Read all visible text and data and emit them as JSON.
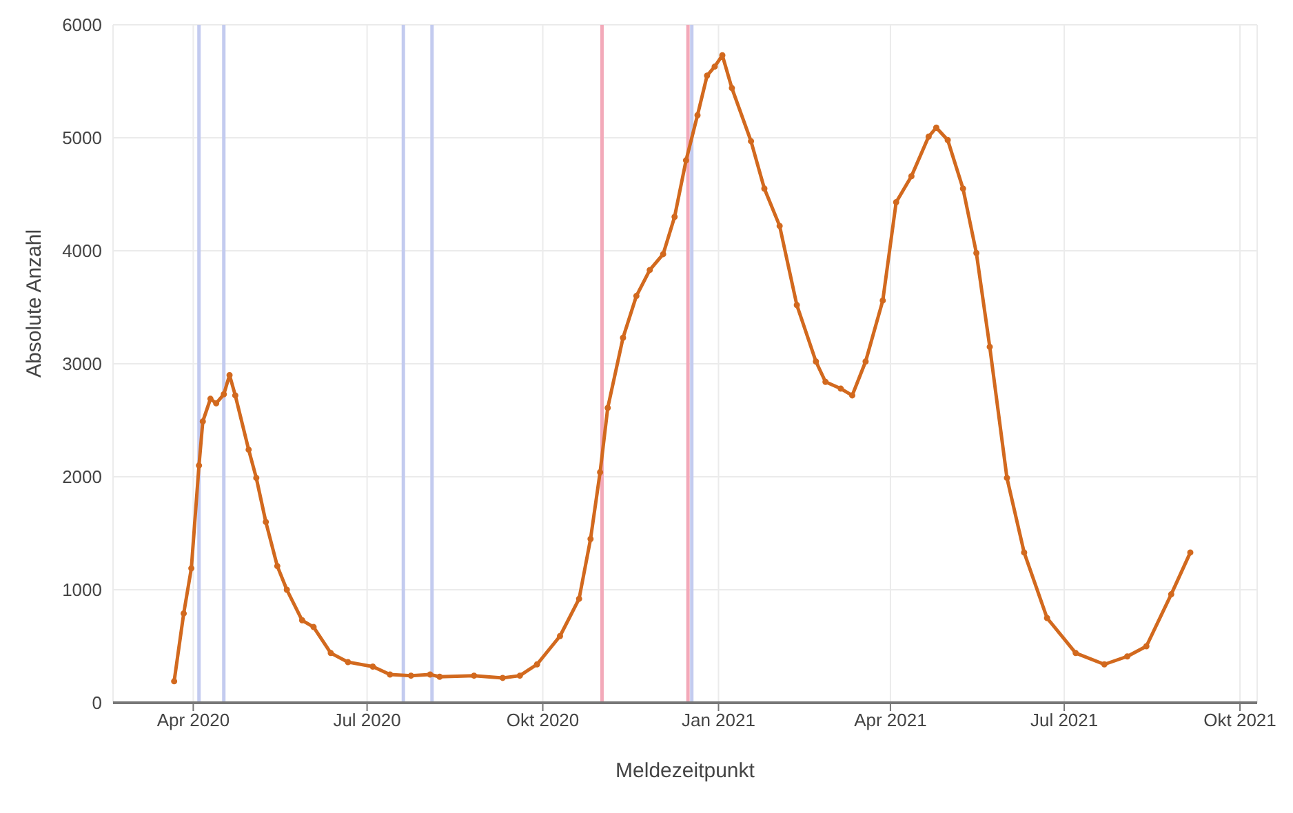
{
  "chart_data": {
    "type": "line",
    "xlabel": "Meldezeitpunkt",
    "ylabel": "Absolute Anzahl",
    "x": [
      "2020-03-22",
      "2020-03-27",
      "2020-03-31",
      "2020-04-04",
      "2020-04-06",
      "2020-04-10",
      "2020-04-13",
      "2020-04-17",
      "2020-04-20",
      "2020-04-23",
      "2020-04-30",
      "2020-05-04",
      "2020-05-09",
      "2020-05-15",
      "2020-05-20",
      "2020-05-28",
      "2020-06-03",
      "2020-06-12",
      "2020-06-21",
      "2020-07-04",
      "2020-07-13",
      "2020-07-24",
      "2020-08-03",
      "2020-08-08",
      "2020-08-26",
      "2020-09-10",
      "2020-09-19",
      "2020-09-28",
      "2020-10-10",
      "2020-10-20",
      "2020-10-26",
      "2020-10-31",
      "2020-11-04",
      "2020-11-12",
      "2020-11-19",
      "2020-11-26",
      "2020-12-03",
      "2020-12-09",
      "2020-12-15",
      "2020-12-21",
      "2020-12-26",
      "2020-12-30",
      "2021-01-03",
      "2021-01-08",
      "2021-01-18",
      "2021-01-25",
      "2021-02-02",
      "2021-02-11",
      "2021-02-21",
      "2021-02-26",
      "2021-03-06",
      "2021-03-12",
      "2021-03-19",
      "2021-03-28",
      "2021-04-04",
      "2021-04-12",
      "2021-04-21",
      "2021-04-25",
      "2021-05-01",
      "2021-05-09",
      "2021-05-16",
      "2021-05-23",
      "2021-06-01",
      "2021-06-10",
      "2021-06-22",
      "2021-07-07",
      "2021-07-22",
      "2021-08-03",
      "2021-08-13",
      "2021-08-26",
      "2021-09-05"
    ],
    "series": [
      {
        "color": "#d2691e",
        "values": [
          190,
          790,
          1190,
          2100,
          2490,
          2690,
          2650,
          2730,
          2900,
          2720,
          2240,
          1990,
          1600,
          1210,
          1000,
          730,
          670,
          440,
          360,
          320,
          250,
          240,
          250,
          230,
          240,
          220,
          240,
          340,
          590,
          920,
          1450,
          2040,
          2610,
          3230,
          3600,
          3830,
          3970,
          4300,
          4800,
          5200,
          5550,
          5630,
          5730,
          5440,
          4970,
          4550,
          4220,
          3520,
          3020,
          2840,
          2780,
          2720,
          3020,
          3560,
          4430,
          4660,
          5010,
          5090,
          4980,
          4550,
          3980,
          3150,
          1990,
          1330,
          750,
          440,
          340,
          410,
          500,
          960,
          1330
        ]
      }
    ],
    "xlim": [
      "2020-02-19",
      "2021-10-10"
    ],
    "xticks": [
      {
        "value": "2020-04-01",
        "label": "Apr 2020"
      },
      {
        "value": "2020-07-01",
        "label": "Jul 2020"
      },
      {
        "value": "2020-10-01",
        "label": "Okt 2020"
      },
      {
        "value": "2021-01-01",
        "label": "Jan 2021"
      },
      {
        "value": "2021-04-01",
        "label": "Apr 2021"
      },
      {
        "value": "2021-07-01",
        "label": "Jul 2021"
      },
      {
        "value": "2021-10-01",
        "label": "Okt 2021"
      }
    ],
    "ylim": [
      0,
      6000
    ],
    "yticks": [
      0,
      1000,
      2000,
      3000,
      4000,
      5000,
      6000
    ],
    "ref_lines": [
      {
        "axis": "x",
        "value": "2020-04-04",
        "color": "#c3cbef"
      },
      {
        "axis": "x",
        "value": "2020-04-17",
        "color": "#c3cbef"
      },
      {
        "axis": "x",
        "value": "2020-07-20",
        "color": "#c3cbef"
      },
      {
        "axis": "x",
        "value": "2020-08-04",
        "color": "#c3cbef"
      },
      {
        "axis": "x",
        "value": "2020-11-01",
        "color": "#f3a9b9"
      },
      {
        "axis": "x",
        "value": "2020-12-16",
        "color": "#f3a9b9"
      },
      {
        "axis": "x",
        "value": "2020-12-18",
        "color": "#c3cbef"
      }
    ],
    "grid": true,
    "legend": false,
    "marker": "circle",
    "line_style": "solid"
  }
}
